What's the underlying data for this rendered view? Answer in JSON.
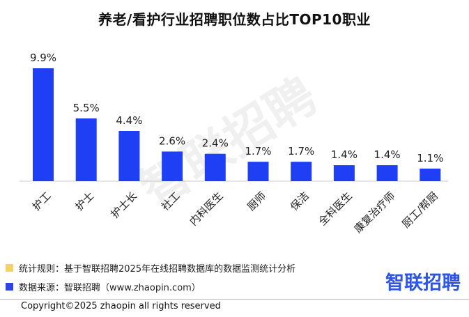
{
  "title": "养老/看护行业招聘职位数占比TOP10职业",
  "watermark": "智联招聘",
  "notes": [
    {
      "text": "统计规则：基于智联招聘2025年在线招聘数据库的数据监测统计分析",
      "color": "#f5d266"
    },
    {
      "text": "数据来源：智联招聘（www.zhaopin.com）",
      "color": "#2d45e6"
    }
  ],
  "brand": "智联招聘",
  "copyright": "Copyright©2025 zhaopin all rights reserved",
  "chart_data": {
    "type": "bar",
    "title": "养老/看护行业招聘职位数占比TOP10职业",
    "categories": [
      "护工",
      "护士",
      "护士长",
      "社工",
      "内科医生",
      "厨师",
      "保洁",
      "全科医生",
      "康复治疗师",
      "厨工/帮厨"
    ],
    "values": [
      9.9,
      5.5,
      4.4,
      2.6,
      2.4,
      1.7,
      1.7,
      1.4,
      1.4,
      1.1
    ],
    "labels": [
      "9.9%",
      "5.5%",
      "4.4%",
      "2.6%",
      "2.4%",
      "1.7%",
      "1.7%",
      "1.4%",
      "1.4%",
      "1.1%"
    ],
    "ylim": [
      0,
      9.9
    ],
    "color": "#1f3ff5",
    "grid": false,
    "legend": "none"
  }
}
